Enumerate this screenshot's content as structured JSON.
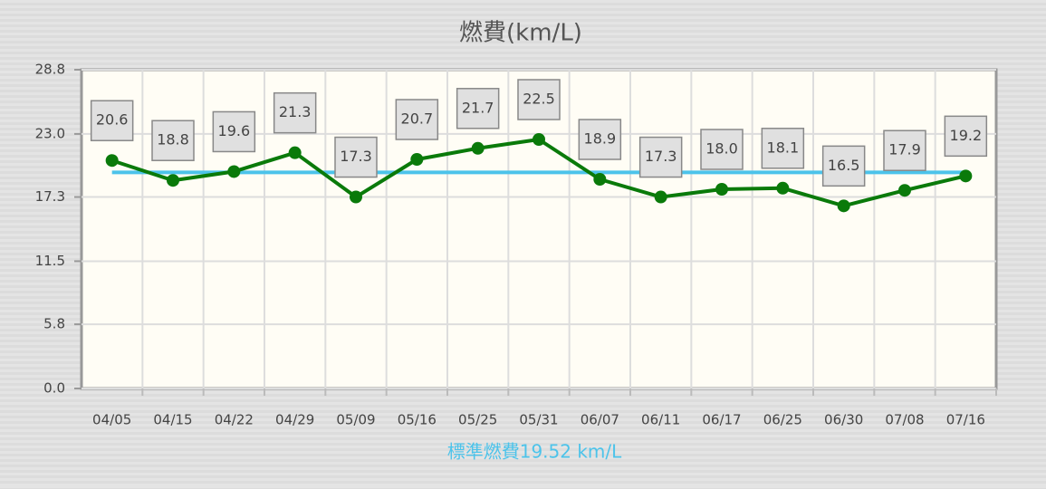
{
  "chart_data": {
    "type": "line",
    "title": "燃費(km/L)",
    "categories": [
      "04/05",
      "04/15",
      "04/22",
      "04/29",
      "05/09",
      "05/16",
      "05/25",
      "05/31",
      "06/07",
      "06/11",
      "06/17",
      "06/25",
      "06/30",
      "07/08",
      "07/16"
    ],
    "series": [
      {
        "name": "燃費",
        "color": "#0a7a0a",
        "values": [
          20.6,
          18.8,
          19.6,
          21.3,
          17.3,
          20.7,
          21.7,
          22.5,
          18.9,
          17.3,
          18.0,
          18.1,
          16.5,
          17.9,
          19.2
        ],
        "value_labels": [
          "20.6",
          "18.8",
          "19.6",
          "21.3",
          "17.3",
          "20.7",
          "21.7",
          "22.5",
          "18.9",
          "17.3",
          "18.0",
          "18.1",
          "16.5",
          "17.9",
          "19.2"
        ]
      }
    ],
    "reference_value": 19.52,
    "reference_color": "#4cc3ea",
    "reference_label": "標準燃費19.52 km/L",
    "ylim": [
      0,
      28.8
    ],
    "yticks": [
      {
        "value": 0,
        "label": "0.0"
      },
      5.8,
      11.5,
      17.3,
      {
        "value": 23,
        "label": "23.0"
      },
      28.8
    ],
    "grid": true
  }
}
